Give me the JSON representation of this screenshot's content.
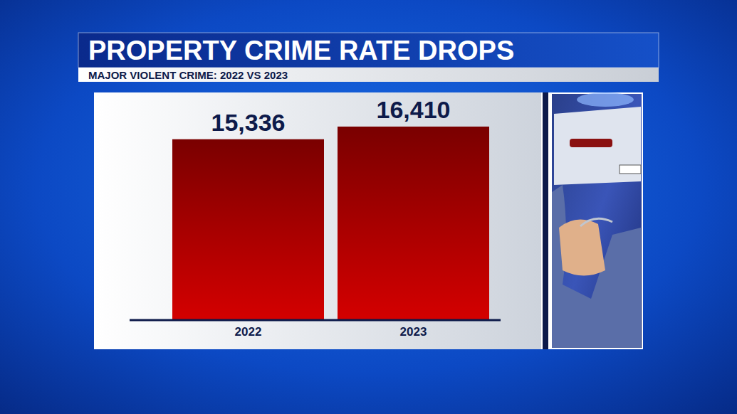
{
  "chart_data": {
    "type": "bar",
    "title": "PROPERTY CRIME RATE DROPS",
    "subtitle": "MAJOR VIOLENT CRIME: 2022 VS 2023",
    "categories": [
      "2022",
      "2023"
    ],
    "values": [
      15336,
      16410
    ],
    "value_labels": [
      "15,336",
      "16,410"
    ],
    "color": "#d40000",
    "ylim": [
      0,
      19000
    ],
    "yticks": [
      0
    ],
    "data_labels": true,
    "tick_labels": "x",
    "grid": false
  }
}
